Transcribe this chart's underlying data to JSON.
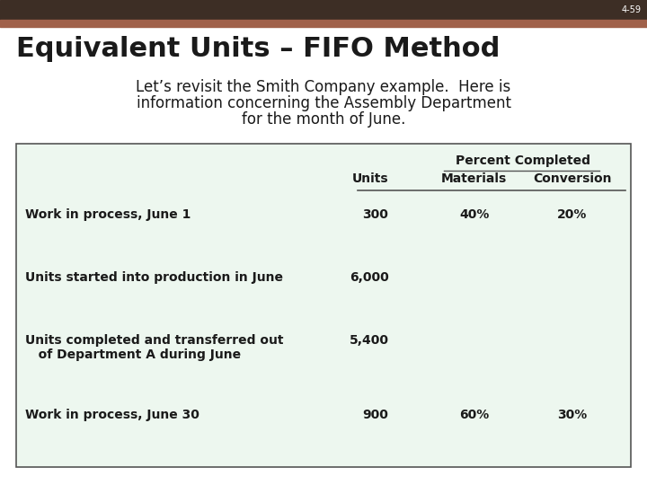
{
  "slide_number": "4-59",
  "title": "Equivalent Units – FIFO Method",
  "subtitle_line1": "Let’s revisit the Smith Company example.  Here is",
  "subtitle_line2": "information concerning the Assembly Department",
  "subtitle_line3": "for the month of June.",
  "bg_color": "#ffffff",
  "header_bar_dark": "#3d2e25",
  "header_bar_medium": "#a0614a",
  "title_color": "#1a1a1a",
  "title_fontsize": 22,
  "subtitle_fontsize": 12,
  "slide_num_color": "#ffffff",
  "slide_num_fontsize": 7,
  "table_bg": "#edf7ef",
  "table_border": "#555555",
  "col_header_fontsize": 10,
  "row_fontsize": 10,
  "percent_completed_label": "Percent Completed",
  "rows": [
    {
      "label": "Work in process, June 1",
      "label2": "",
      "units": "300",
      "materials": "40%",
      "conversion": "20%"
    },
    {
      "label": "Units started into production in June",
      "label2": "",
      "units": "6,000",
      "materials": "",
      "conversion": ""
    },
    {
      "label": "Units completed and transferred out",
      "label2": "   of Department A during June",
      "units": "5,400",
      "materials": "",
      "conversion": ""
    },
    {
      "label": "Work in process, June 30",
      "label2": "",
      "units": "900",
      "materials": "60%",
      "conversion": "30%"
    }
  ]
}
